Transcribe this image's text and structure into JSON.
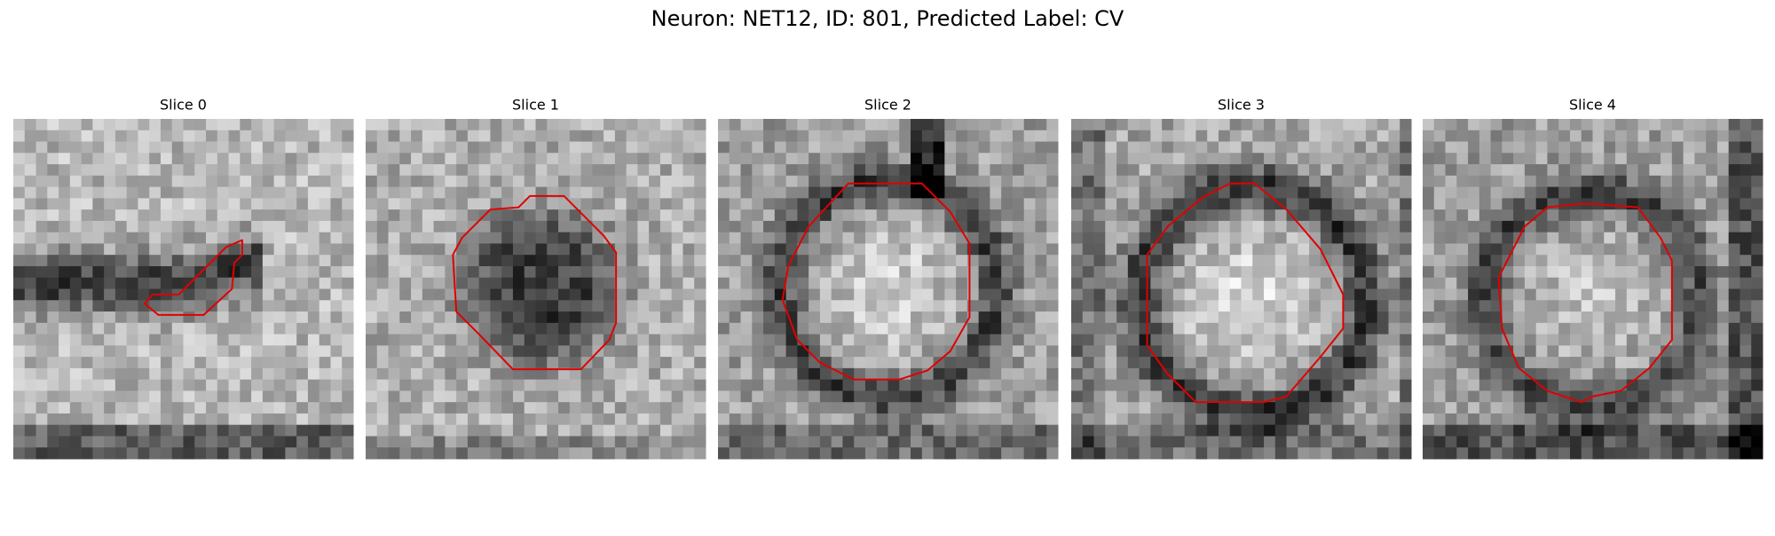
{
  "header": {
    "title": "Neuron: NET12, ID: 801, Predicted Label: CV"
  },
  "panels": [
    {
      "title": "Slice 0"
    },
    {
      "title": "Slice 1"
    },
    {
      "title": "Slice 2"
    },
    {
      "title": "Slice 3"
    },
    {
      "title": "Slice 4"
    }
  ]
}
